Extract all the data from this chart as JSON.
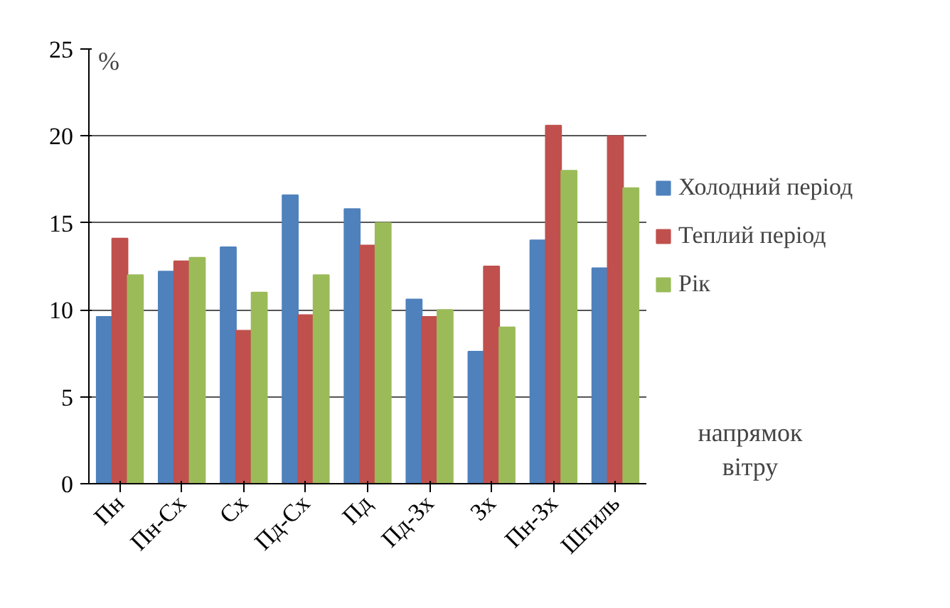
{
  "chart_data": {
    "type": "bar",
    "ylabel": "%",
    "xlabel": "напрямок\nвітру",
    "categories": [
      "Пн",
      "Пн-Сх",
      "Сх",
      "Пд-Сх",
      "Пд",
      "Пд-Зх",
      "Зх",
      "Пн-Зх",
      "Штиль"
    ],
    "series": [
      {
        "name": "Холодний період",
        "color": "#4f81bd",
        "values": [
          9.6,
          12.2,
          13.6,
          16.6,
          15.8,
          10.6,
          7.6,
          14.0,
          12.4
        ]
      },
      {
        "name": "Теплий період",
        "color": "#c0504d",
        "values": [
          14.1,
          12.8,
          8.8,
          9.7,
          13.7,
          9.6,
          12.5,
          20.6,
          20.0
        ]
      },
      {
        "name": "Рік",
        "color": "#9bbb59",
        "values": [
          12,
          13,
          11,
          12,
          15,
          10,
          9,
          18,
          17
        ]
      }
    ],
    "ylim": [
      0,
      25
    ],
    "yticks": [
      0,
      5,
      10,
      15,
      20,
      25
    ],
    "grid": "y",
    "legend": "right"
  }
}
